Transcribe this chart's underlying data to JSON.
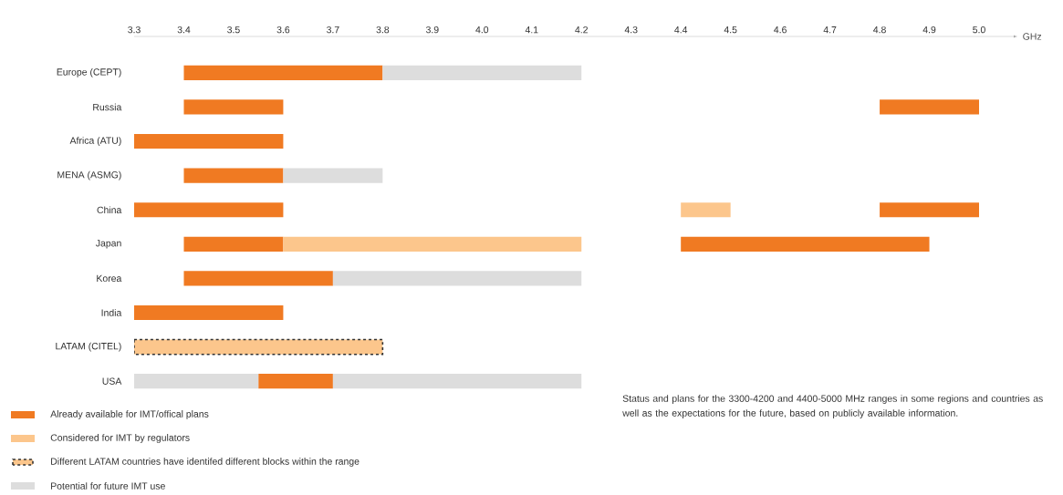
{
  "chart_data": {
    "type": "bar",
    "orientation": "horizontal",
    "xlabel": "GHz",
    "categories": [
      "Europe (CEPT)",
      "Russia",
      "Africa (ATU)",
      "MENA (ASMG)",
      "China",
      "Japan",
      "Korea",
      "India",
      "LATAM (CITEL)",
      "USA"
    ],
    "series": [
      {
        "name": "Already available for IMT/offical plans",
        "color": "#f07a22",
        "base": [
          3.4,
          3.4,
          3.3,
          3.4,
          3.3,
          3.4,
          3.4,
          3.3,
          null,
          3.55
        ],
        "values": [
          0.4,
          0.2,
          0.3,
          0.2,
          0.3,
          0.2,
          0.3,
          0.3,
          null,
          0.15
        ]
      },
      {
        "color": "#f07a22",
        "base": [
          null,
          4.8,
          null,
          null,
          4.8,
          4.4,
          null,
          null,
          null,
          null
        ],
        "values": [
          null,
          0.2,
          null,
          null,
          0.2,
          0.5,
          null,
          null,
          null,
          null
        ]
      },
      {
        "name": "Considered for IMT by regulators",
        "color": "#fcc68c",
        "base": [
          null,
          null,
          null,
          null,
          4.4,
          3.6,
          null,
          null,
          null,
          null
        ],
        "values": [
          null,
          null,
          null,
          null,
          0.1,
          0.6,
          null,
          null,
          null,
          null
        ]
      },
      {
        "name": "Different LATAM countries have identifed different blocks within the range",
        "color": "#fcc68c",
        "line_style": "dashed",
        "base": [
          null,
          null,
          null,
          null,
          null,
          null,
          null,
          null,
          3.3,
          null
        ],
        "values": [
          null,
          null,
          null,
          null,
          null,
          null,
          null,
          null,
          0.5,
          null
        ]
      },
      {
        "name": "Potential for future IMT use",
        "color": "#dddddd",
        "base": [
          3.8,
          null,
          null,
          3.6,
          null,
          null,
          3.7,
          null,
          null,
          3.3
        ],
        "values": [
          0.4,
          null,
          null,
          0.2,
          null,
          null,
          0.5,
          null,
          null,
          0.25
        ]
      },
      {
        "color": "#dddddd",
        "base": [
          null,
          null,
          null,
          null,
          null,
          null,
          null,
          null,
          null,
          3.7
        ],
        "values": [
          null,
          null,
          null,
          null,
          null,
          null,
          null,
          null,
          null,
          0.5
        ]
      }
    ],
    "xlim": [
      3.3,
      5.0
    ],
    "xticks": [
      {
        "value": 3.3,
        "label": "3.3"
      },
      {
        "value": 3.4,
        "label": "3.4"
      },
      {
        "value": 3.5,
        "label": "3.5"
      },
      {
        "value": 3.6,
        "label": "3.6"
      },
      {
        "value": 3.7,
        "label": "3.7"
      },
      {
        "value": 3.8,
        "label": "3.8"
      },
      {
        "value": 3.9,
        "label": "3.9"
      },
      {
        "value": 4.0,
        "label": "4.0"
      },
      {
        "value": 4.1,
        "label": "4.1"
      },
      {
        "value": 4.2,
        "label": "4.2"
      },
      {
        "value": 4.3,
        "label": "4.3"
      },
      {
        "value": 4.4,
        "label": "4.4"
      },
      {
        "value": 4.5,
        "label": "4.5"
      },
      {
        "value": 4.6,
        "label": "4.6"
      },
      {
        "value": 4.7,
        "label": "4.7"
      },
      {
        "value": 4.8,
        "label": "4.8"
      },
      {
        "value": 4.9,
        "label": "4.9"
      },
      {
        "value": 5.0,
        "label": "5.0"
      }
    ],
    "legend": "bottom left",
    "annotations": [
      "Status and plans for the 3300-4200 and 4400-5000 MHz ranges in some regions and countries as well as the expectations for the future, based on publicly available information."
    ]
  }
}
